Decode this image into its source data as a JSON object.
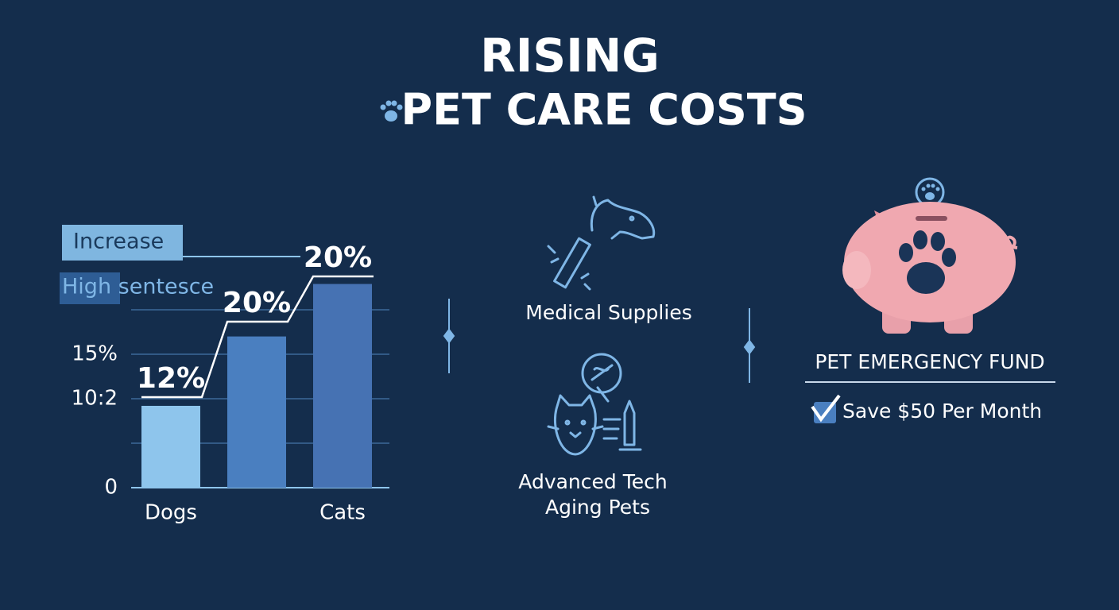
{
  "header": {
    "title_lines": [
      "RISING",
      "PET CARE COSTS"
    ]
  },
  "chart_data": {
    "type": "bar",
    "categories": [
      "Dogs",
      null,
      "Cats"
    ],
    "values": [
      9.2,
      17,
      22.9
    ],
    "colors": [
      "#8ec5ec",
      "#4a7fc0",
      "#4672b3"
    ],
    "ylim": [
      0,
      25
    ],
    "yticks": [
      0,
      {
        "value": 10,
        "label": "10:2"
      },
      {
        "value": 15,
        "label": "15%"
      }
    ],
    "grid": true,
    "grid_values": [
      0,
      5,
      10,
      15,
      20
    ],
    "annotations": [
      "12%",
      "20%",
      "20%"
    ],
    "notes": [
      "Increase",
      "High sentesce"
    ]
  },
  "factors": {
    "items": [
      {
        "lines": [
          "Medical Supplies"
        ]
      },
      {
        "lines": [
          "Advanced Tech",
          "Aging Pets"
        ]
      }
    ]
  },
  "fund": {
    "title": "PET EMERGENCY FUND",
    "tip": "Save $50 Per Month"
  }
}
